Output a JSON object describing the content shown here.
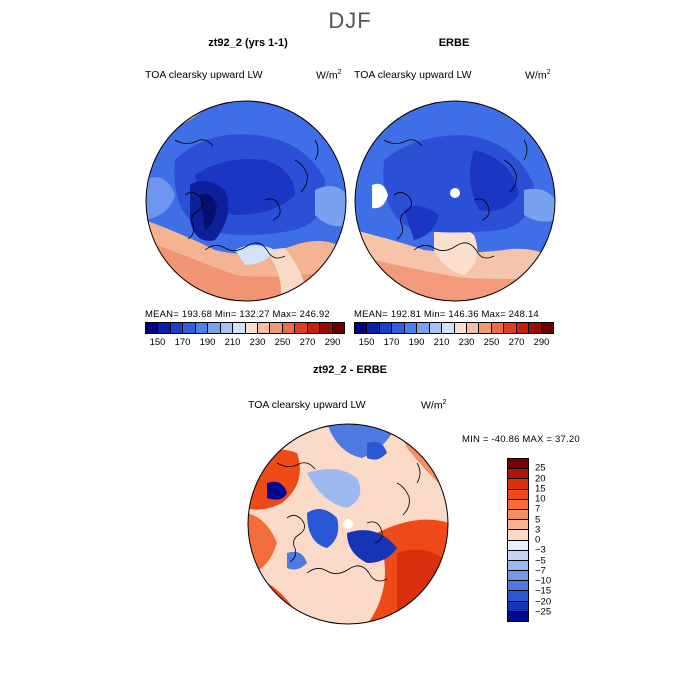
{
  "figure": {
    "season": "DJF"
  },
  "panels": [
    {
      "title": "zt92_2 (yrs 1-1)",
      "variable": "TOA clearsky upward LW",
      "units": "W/m",
      "units_exp": "2",
      "stats": "MEAN= 193.68   Min= 132.27   Max= 246.92",
      "scheme": "abs"
    },
    {
      "title": "ERBE",
      "variable": "TOA clearsky upward LW",
      "units": "W/m",
      "units_exp": "2",
      "stats": "MEAN= 192.81   Min= 146.36   Max= 248.14",
      "scheme": "abs"
    },
    {
      "title": "zt92_2 - ERBE",
      "variable": "TOA clearsky upward LW",
      "units": "W/m",
      "units_exp": "2",
      "stats": "MIN = -40.86  MAX =  37.20",
      "scheme": "diff"
    }
  ],
  "colorbar_abs": {
    "ticks": [
      "150",
      "170",
      "190",
      "210",
      "230",
      "250",
      "270",
      "290"
    ],
    "colors": [
      "#000080",
      "#0a1fa8",
      "#1a3fcc",
      "#2f5fe0",
      "#4f7fe8",
      "#7aa0f0",
      "#a5c2f5",
      "#d2e2fa",
      "#fbe0cf",
      "#f7bfa3",
      "#f29877",
      "#ec6c4c",
      "#e03e24",
      "#c81e0e",
      "#9c0c04",
      "#6e0000"
    ]
  },
  "colorbar_diff": {
    "ticks": [
      "25",
      "20",
      "15",
      "10",
      "7",
      "5",
      "3",
      "0",
      "−3",
      "−5",
      "−7",
      "−10",
      "−15",
      "−20",
      "−25"
    ],
    "colors": [
      "#7a0000",
      "#b01404",
      "#d8300c",
      "#ee4a18",
      "#f26c3c",
      "#f48e64",
      "#f7b294",
      "#fbdac8",
      "#e9effc",
      "#c3d4f7",
      "#9db9f2",
      "#7399eb",
      "#4d7be2",
      "#2a58d4",
      "#1534b8",
      "#000890"
    ]
  }
}
